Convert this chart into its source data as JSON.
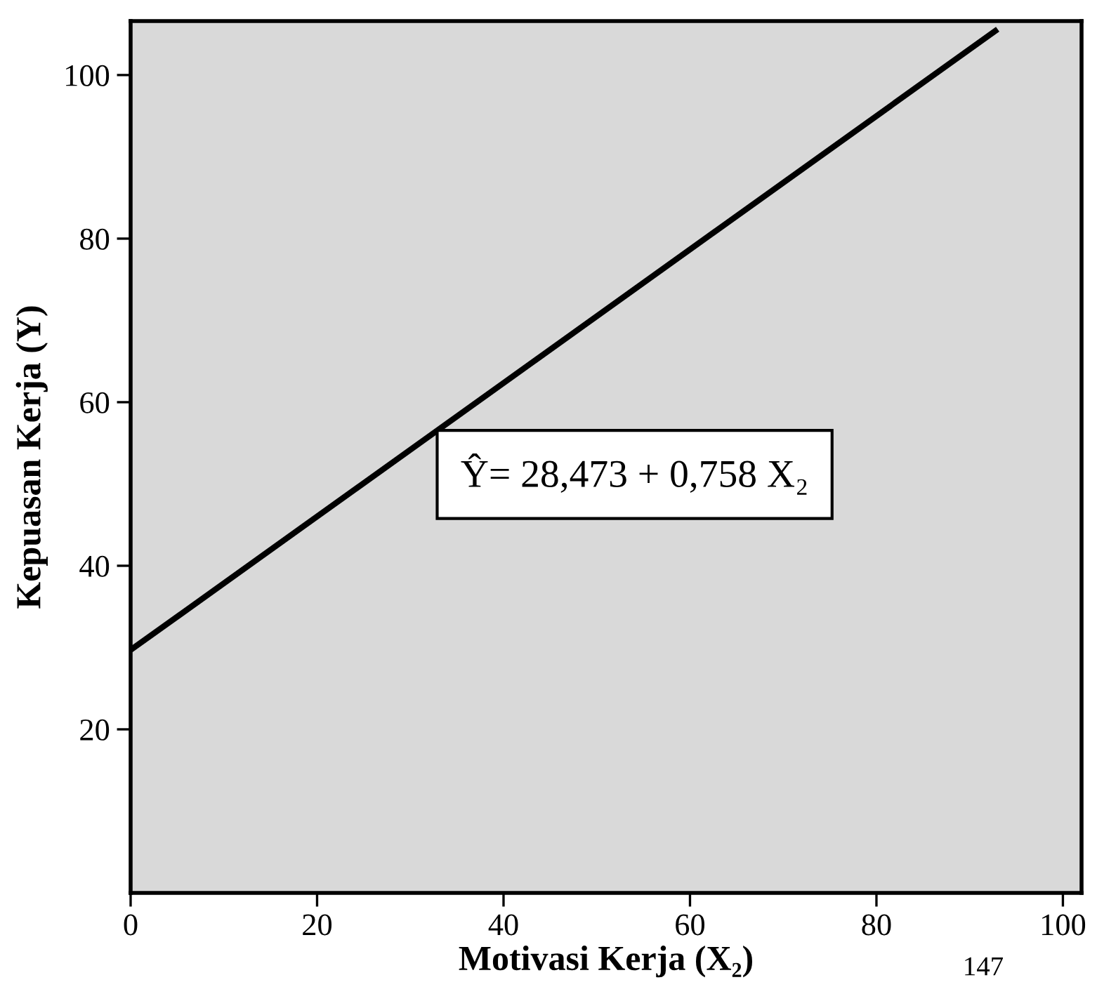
{
  "chart_data": {
    "type": "line",
    "xlabel": "Motivasi Kerja (X₂)",
    "ylabel": "Kepuasan Kerja (Y)",
    "x": [
      0,
      93.0
    ],
    "series": [
      {
        "color": "#000000",
        "values": [
          29.7,
          105.6
        ]
      }
    ],
    "xlim": [
      0,
      102
    ],
    "ylim": [
      0,
      106.6
    ],
    "xticks": [
      {
        "value": 0,
        "label": "0"
      },
      20,
      40,
      60,
      80,
      100
    ],
    "yticks": [
      20,
      40,
      60,
      80,
      100
    ],
    "grid": false,
    "legend": false,
    "marker": "none",
    "line_style": "solid",
    "annotations": [
      "Ŷ= 28,473 + 0,758 X₂",
      "147"
    ]
  }
}
